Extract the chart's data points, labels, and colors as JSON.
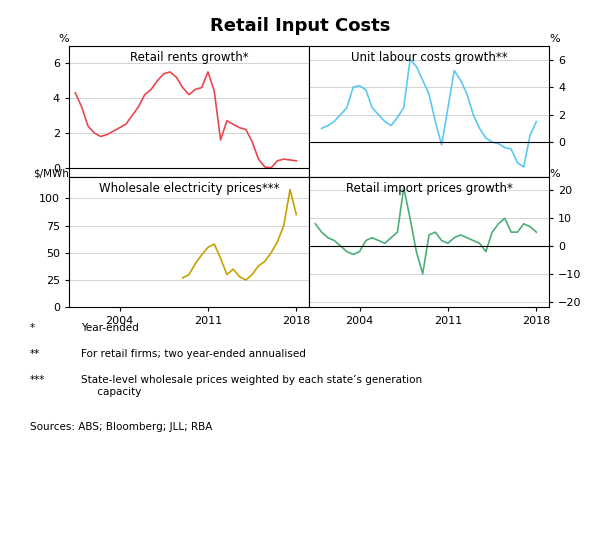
{
  "title": "Retail Input Costs",
  "panel_titles": [
    "Retail rents growth*",
    "Unit labour costs growth**",
    "Wholesale electricity prices***",
    "Retail import prices growth*"
  ],
  "top_left_ylabel": "%",
  "top_right_ylabel": "%",
  "bottom_left_ylabel": "$/MWh",
  "bottom_right_ylabel": "%",
  "footnotes": [
    [
      "*",
      "Year-ended"
    ],
    [
      "**",
      "For retail firms; two year-ended annualised"
    ],
    [
      "***",
      "State-level wholesale prices weighted by each state’s generation\n     capacity"
    ]
  ],
  "sources": "Sources: ABS; Bloomberg; JLL; RBA",
  "colors": {
    "retail_rents": "#e8474c",
    "unit_labour": "#5bc8f5",
    "wholesale_elec": "#c8a000",
    "import_prices": "#4caf78"
  },
  "retail_rents": {
    "x": [
      2000.5,
      2001.0,
      2001.5,
      2002.0,
      2002.5,
      2003.0,
      2003.5,
      2004.0,
      2004.5,
      2005.0,
      2005.5,
      2006.0,
      2006.5,
      2007.0,
      2007.5,
      2008.0,
      2008.5,
      2009.0,
      2009.5,
      2010.0,
      2010.5,
      2011.0,
      2011.5,
      2012.0,
      2012.5,
      2013.0,
      2013.5,
      2014.0,
      2014.5,
      2015.0,
      2015.5,
      2016.0,
      2016.5,
      2017.0,
      2017.5,
      2018.0
    ],
    "y": [
      4.3,
      3.5,
      2.4,
      2.0,
      1.8,
      1.9,
      2.1,
      2.3,
      2.5,
      3.0,
      3.5,
      4.2,
      4.5,
      5.0,
      5.4,
      5.5,
      5.2,
      4.6,
      4.2,
      4.5,
      4.6,
      5.5,
      4.4,
      1.6,
      2.7,
      2.5,
      2.3,
      2.2,
      1.5,
      0.5,
      0.05,
      0.0,
      0.4,
      0.5,
      0.45,
      0.4
    ],
    "ylim": [
      -0.5,
      7
    ],
    "yticks": [
      0,
      2,
      4,
      6
    ]
  },
  "unit_labour": {
    "x": [
      2001.0,
      2001.5,
      2002.0,
      2002.5,
      2003.0,
      2003.5,
      2004.0,
      2004.5,
      2005.0,
      2005.5,
      2006.0,
      2006.5,
      2007.0,
      2007.5,
      2008.0,
      2008.5,
      2009.0,
      2009.5,
      2010.0,
      2010.5,
      2011.0,
      2011.5,
      2012.0,
      2012.5,
      2013.0,
      2013.5,
      2014.0,
      2014.5,
      2015.0,
      2015.5,
      2016.0,
      2016.5,
      2017.0,
      2017.5,
      2018.0
    ],
    "y": [
      1.0,
      1.2,
      1.5,
      2.0,
      2.5,
      4.0,
      4.1,
      3.8,
      2.5,
      2.0,
      1.5,
      1.2,
      1.8,
      2.5,
      6.0,
      5.5,
      4.5,
      3.5,
      1.5,
      -0.2,
      2.5,
      5.2,
      4.5,
      3.5,
      2.0,
      1.0,
      0.3,
      0.0,
      -0.1,
      -0.4,
      -0.5,
      -1.5,
      -1.8,
      0.5,
      1.5
    ],
    "ylim": [
      -2.5,
      7
    ],
    "yticks": [
      0,
      2,
      4,
      6
    ]
  },
  "wholesale_elec": {
    "x": [
      2009.0,
      2009.5,
      2010.0,
      2010.5,
      2011.0,
      2011.5,
      2012.0,
      2012.5,
      2013.0,
      2013.5,
      2014.0,
      2014.5,
      2015.0,
      2015.5,
      2016.0,
      2016.5,
      2017.0,
      2017.5,
      2018.0
    ],
    "y": [
      27,
      30,
      40,
      48,
      55,
      58,
      45,
      30,
      35,
      28,
      25,
      30,
      38,
      42,
      50,
      60,
      75,
      108,
      85
    ],
    "ylim": [
      0,
      120
    ],
    "yticks": [
      0,
      25,
      50,
      75,
      100
    ]
  },
  "import_prices": {
    "x": [
      2000.5,
      2001.0,
      2001.5,
      2002.0,
      2002.5,
      2003.0,
      2003.5,
      2004.0,
      2004.5,
      2005.0,
      2005.5,
      2006.0,
      2006.5,
      2007.0,
      2007.5,
      2008.0,
      2008.5,
      2009.0,
      2009.5,
      2010.0,
      2010.5,
      2011.0,
      2011.5,
      2012.0,
      2012.5,
      2013.0,
      2013.5,
      2014.0,
      2014.5,
      2015.0,
      2015.5,
      2016.0,
      2016.5,
      2017.0,
      2017.5,
      2018.0
    ],
    "y": [
      8,
      5,
      3,
      2,
      0,
      -2,
      -3,
      -2,
      2,
      3,
      2,
      1,
      3,
      5,
      21,
      10,
      -2,
      -10,
      4,
      5,
      2,
      1,
      3,
      4,
      3,
      2,
      1,
      -2,
      5,
      8,
      10,
      5,
      5,
      8,
      7,
      5
    ],
    "ylim": [
      -22,
      25
    ],
    "yticks": [
      -20,
      -10,
      0,
      10,
      20
    ]
  },
  "xlim_left": [
    2000,
    2019
  ],
  "xlim_right": [
    2000,
    2019
  ],
  "xticks": [
    2004,
    2011,
    2018
  ],
  "grid_color": "#cccccc",
  "line_width": 1.2
}
